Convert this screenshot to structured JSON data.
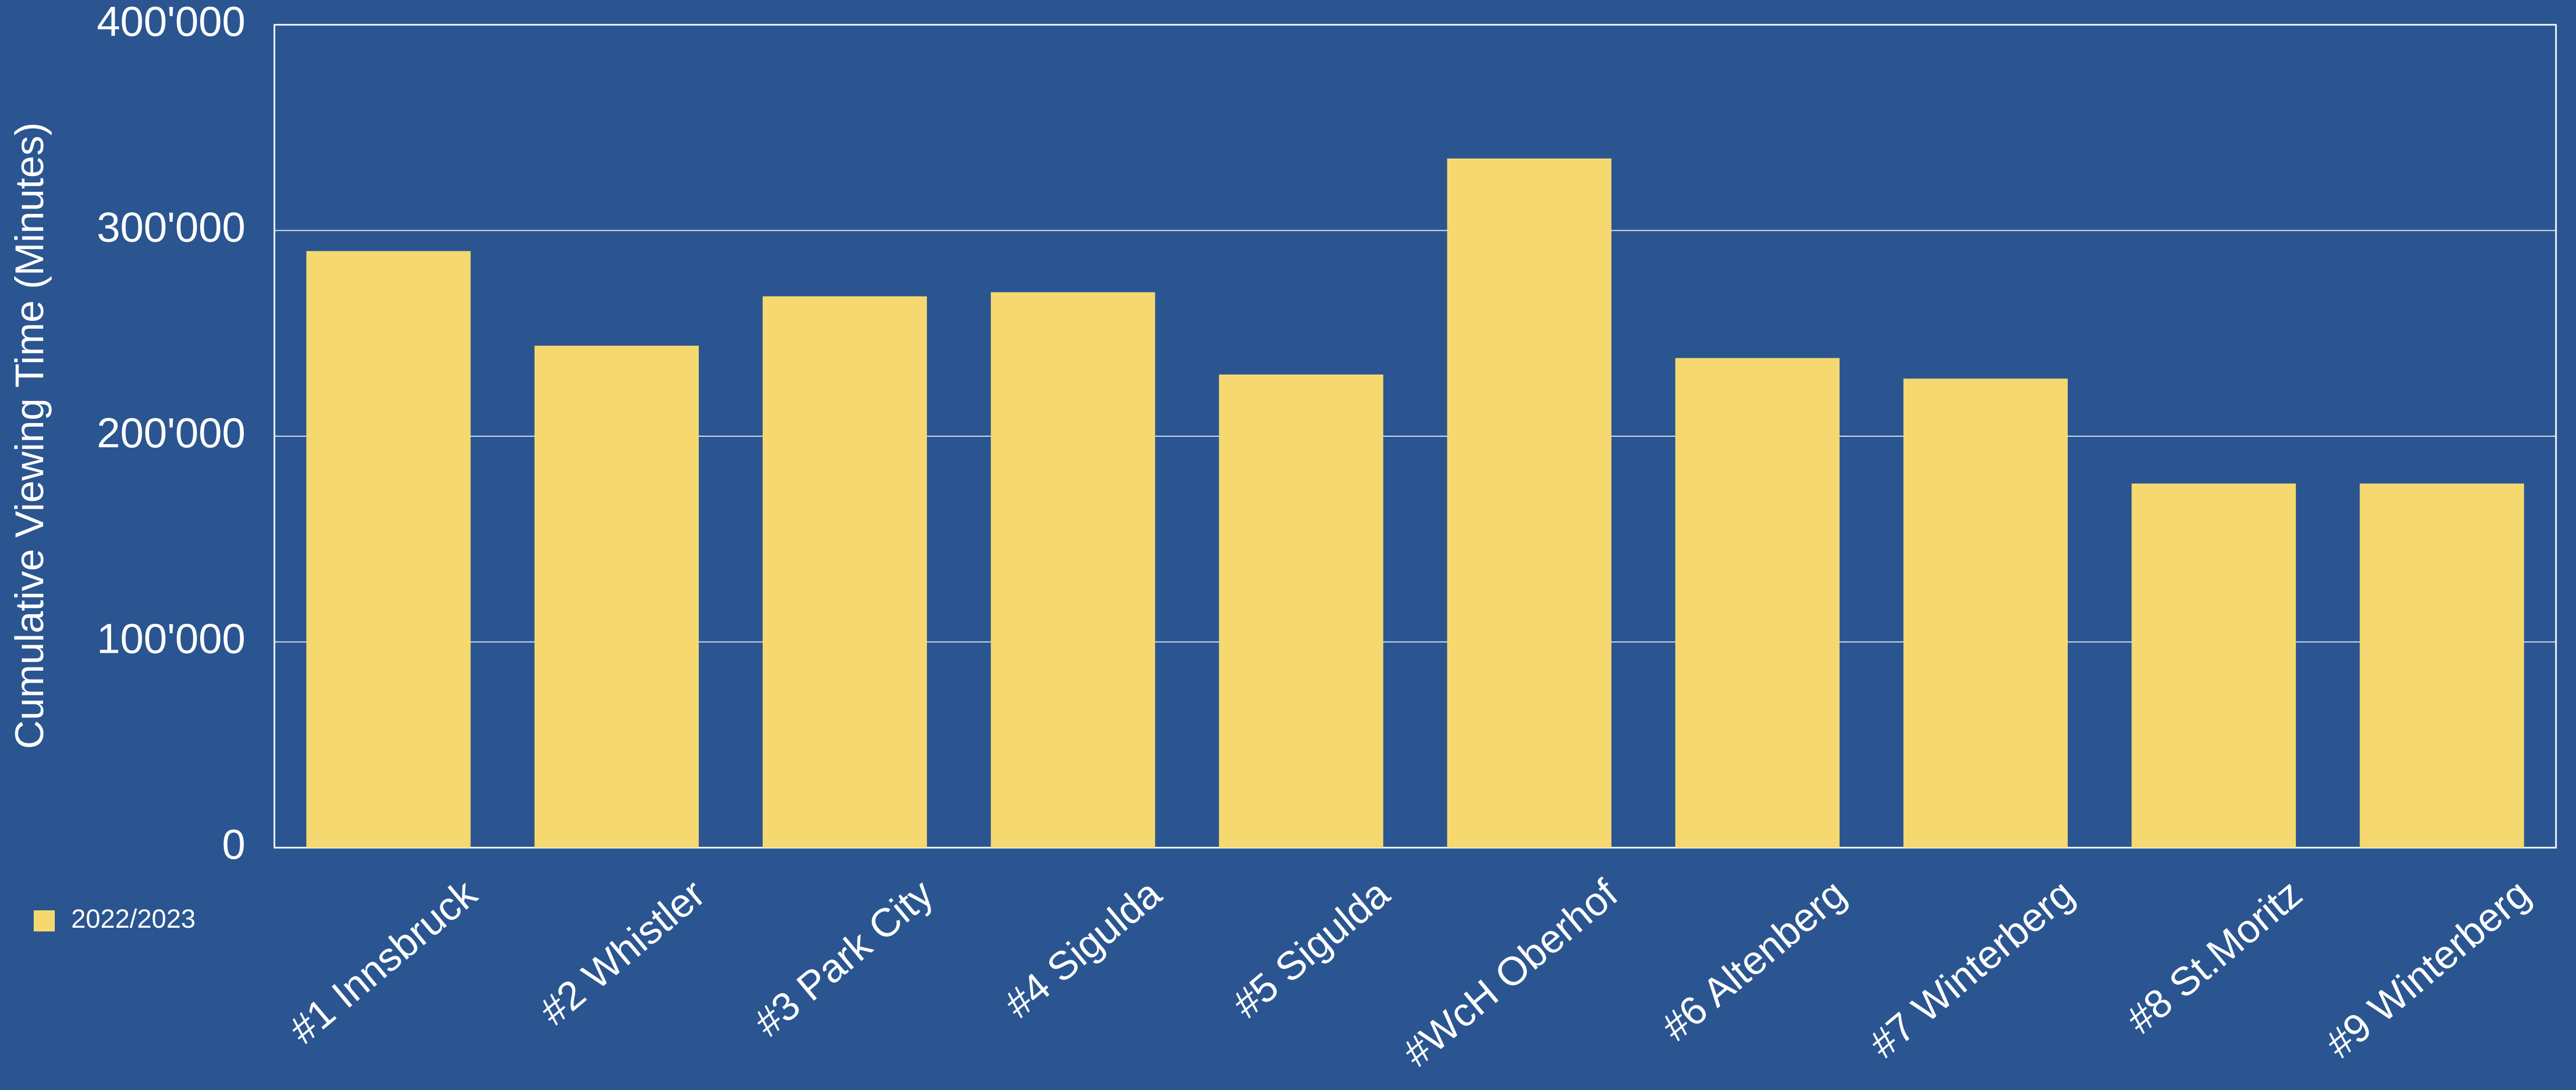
{
  "chart_data": {
    "type": "bar",
    "y_label": "Cumulative Viewing Time (Minutes)",
    "categories": [
      "#1 Innsbruck",
      "#2 Whistler",
      "#3 Park City",
      "#4 Sigulda",
      "#5 Sigulda",
      "#WcH Oberhof",
      "#6 Altenberg",
      "#7 Winterberg",
      "#8 St.Moritz",
      "#9 Winterberg"
    ],
    "series": [
      {
        "name": "2022/2023",
        "color": "#f5d970",
        "values": [
          290000,
          244000,
          268000,
          270000,
          230000,
          335000,
          238000,
          228000,
          177000,
          177000
        ]
      }
    ],
    "ylim": [
      0,
      400000
    ],
    "yticks": [
      0,
      {
        "value": 100000,
        "label": "100'000"
      },
      {
        "value": 200000,
        "label": "200'000"
      },
      {
        "value": 300000,
        "label": "300'000"
      },
      {
        "value": 400000,
        "label": "400'000"
      }
    ],
    "grid": true,
    "legend": "bottom-left"
  }
}
